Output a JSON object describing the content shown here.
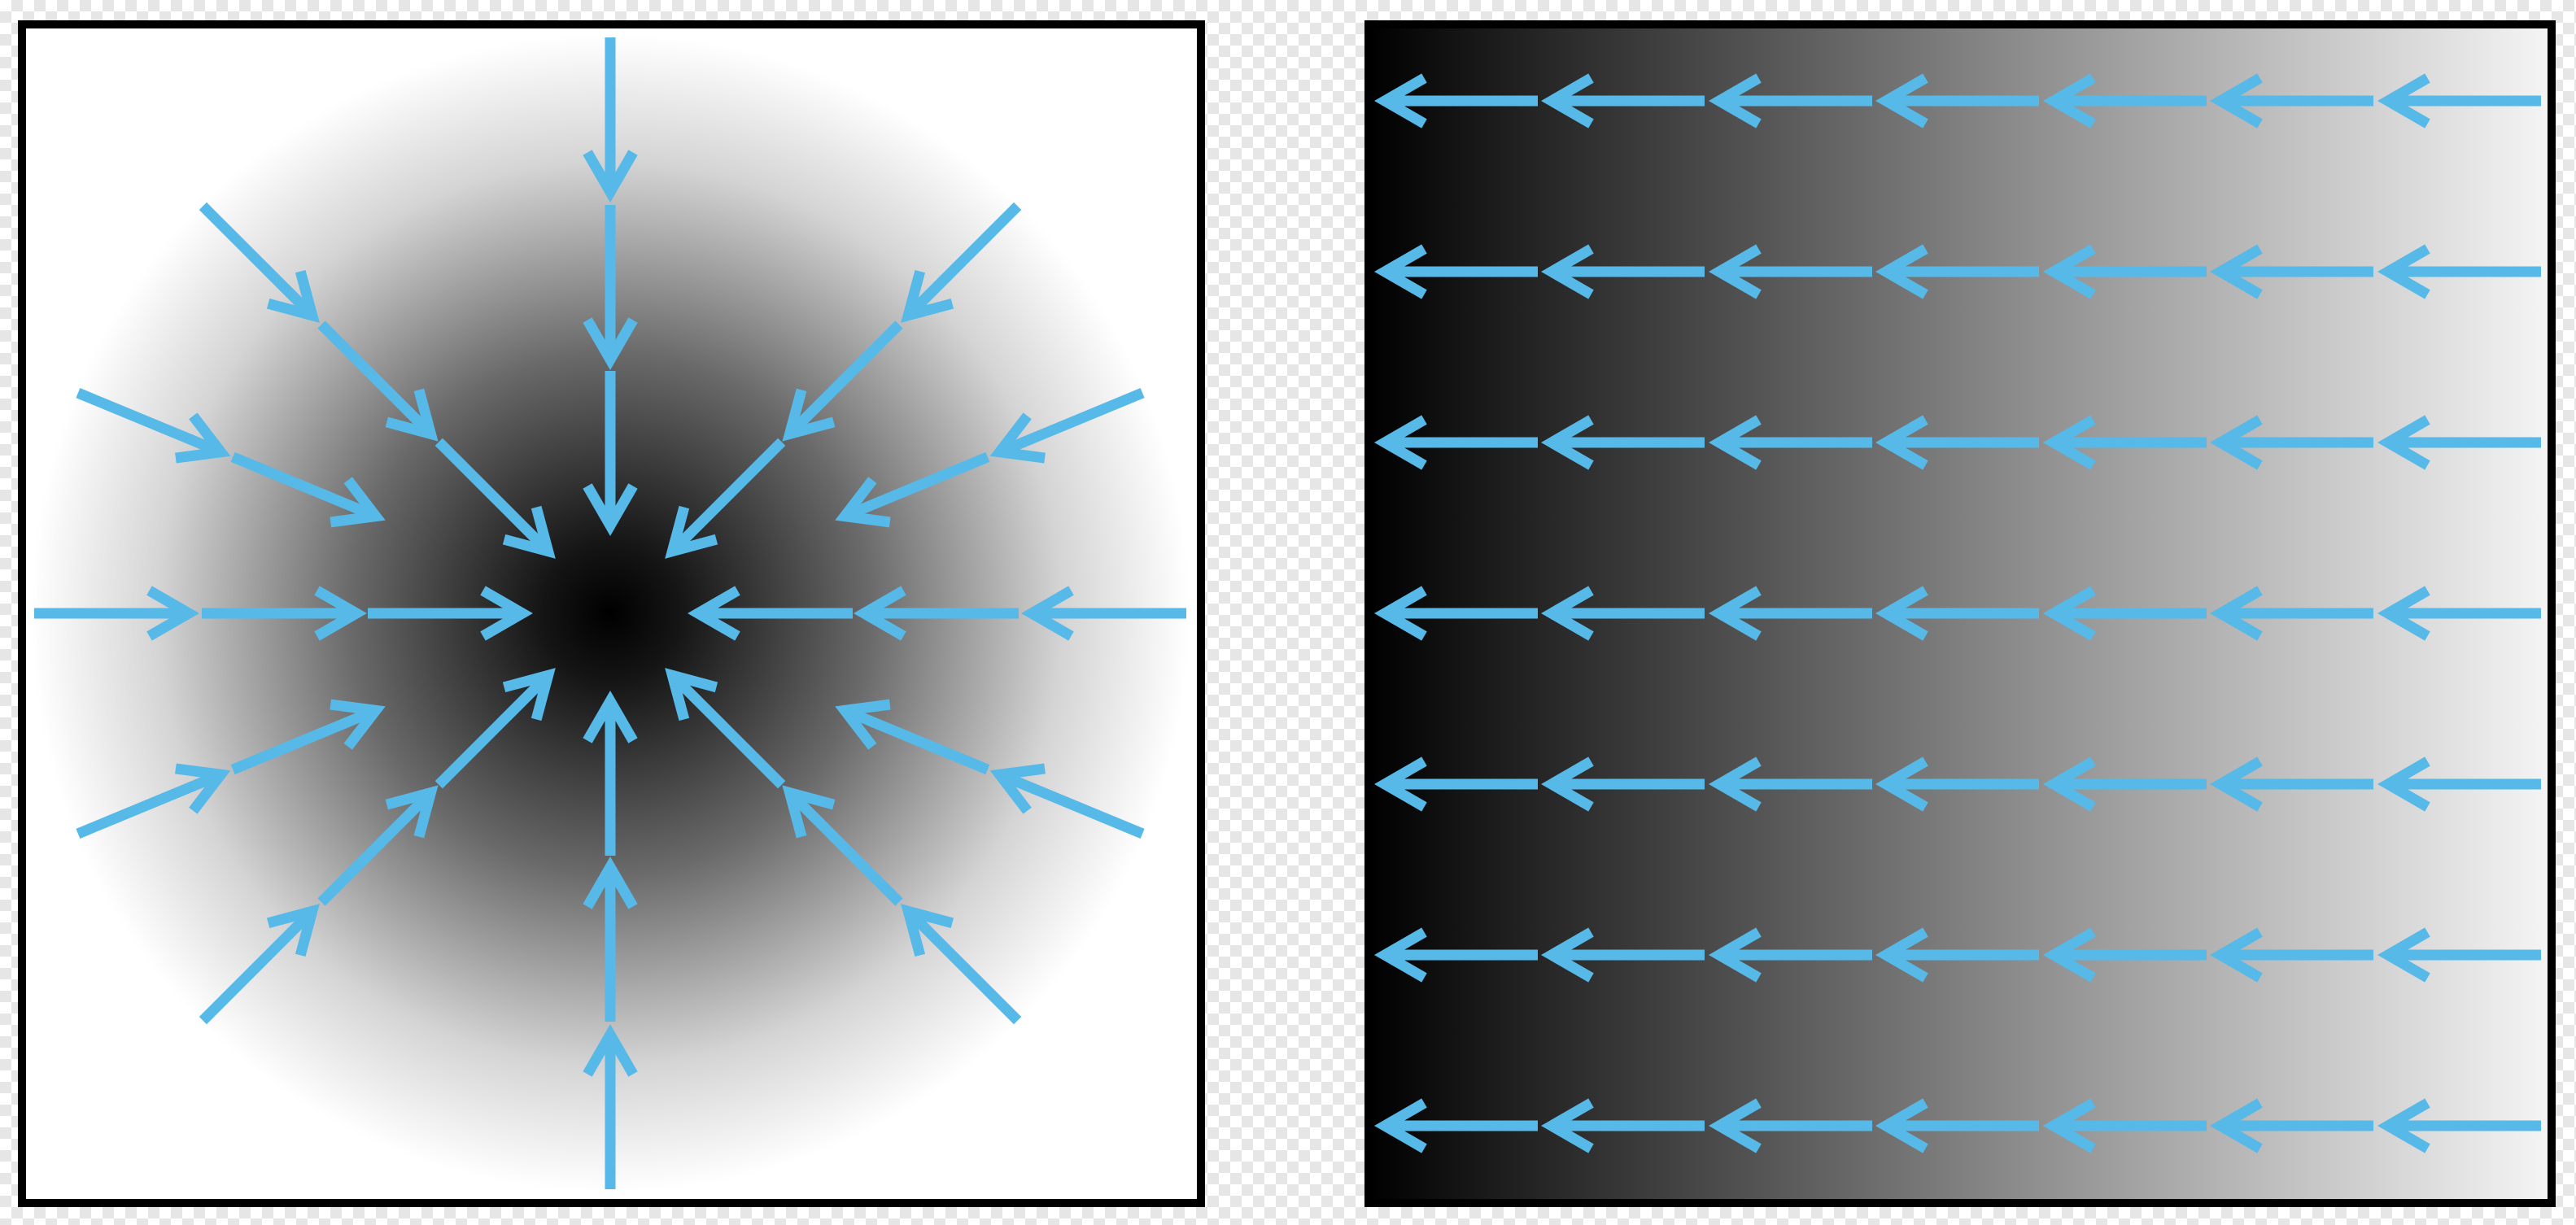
{
  "colors": {
    "arrow": "#56b9e8",
    "frame": "#000000",
    "panel_background": "#ffffff",
    "gradient_dark": "#000000",
    "gradient_light": "#ffffff"
  },
  "panels": [
    {
      "id": "radial-field",
      "description_type": "radial-gradient-with-inward-arrows",
      "rings": 3,
      "arrow_direction": "inward"
    },
    {
      "id": "linear-field",
      "description_type": "horizontal-gradient-with-leftward-arrows",
      "rows": 7,
      "columns": 7,
      "arrow_direction": "left"
    }
  ]
}
